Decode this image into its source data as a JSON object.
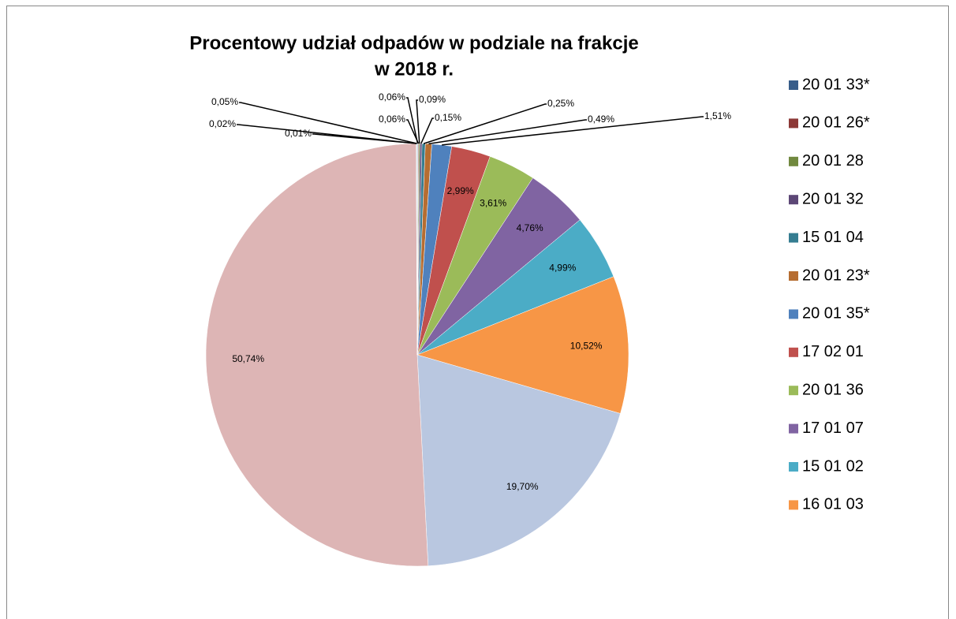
{
  "chart_data": {
    "type": "pie",
    "title": [
      "Procentowy udział odpadów w podziale na frakcje",
      "w 2018 r."
    ],
    "categories": [
      "20 01 33*",
      "20 01 26*",
      "20 01 28",
      "20 01 32",
      "15 01 04",
      "20 01 23*",
      "20 01 35*",
      "17 02 01",
      "20 01 36",
      "17 01 07",
      "15 01 02",
      "16 01 03",
      null,
      null,
      null,
      null,
      null
    ],
    "values": [
      0.06,
      0.06,
      0.09,
      0.15,
      0.25,
      0.49,
      1.51,
      2.99,
      3.61,
      4.76,
      4.99,
      10.52,
      19.7,
      50.74,
      0.01,
      0.02,
      0.05
    ],
    "value_labels": [
      "0,06%",
      "0,06%",
      "0,09%",
      "0,15%",
      "0,25%",
      "0,49%",
      "1,51%",
      "2,99%",
      "3,61%",
      "4,76%",
      "4,99%",
      "10,52%",
      "19,70%",
      "50,74%",
      "0,01%",
      "0,02%",
      "0,05%"
    ],
    "colors": [
      "#385D8A",
      "#8C3836",
      "#71893F",
      "#5C4776",
      "#357D91",
      "#B66D31",
      "#4F81BD",
      "#C0504D",
      "#9BBB59",
      "#8064A2",
      "#4BACC6",
      "#F79646",
      "#B9C7E0",
      "#DDB5B5",
      "#C3D69B",
      "#B3A2C7",
      "#93CDDD"
    ],
    "legend": "right"
  }
}
